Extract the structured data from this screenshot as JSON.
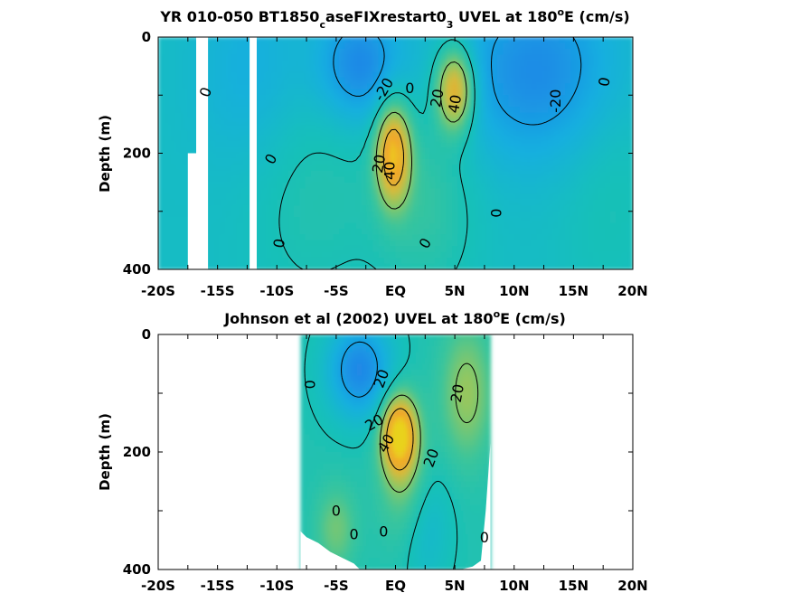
{
  "chart_data": [
    {
      "type": "heatmap",
      "id": "model",
      "title": {
        "pre": "YR 010-050 BT1850",
        "sub1": "c",
        "mid": "aseFIXrestart0",
        "sub2": "3",
        "post1": " UVEL at 180",
        "sup": "o",
        "post2": "E (cm/s)"
      },
      "ylabel": "Depth (m)",
      "xlim": [
        -20,
        20
      ],
      "ylim": [
        0,
        400
      ],
      "y_reversed": true,
      "x_ticks": [
        -20,
        -17.5,
        -15,
        -12.5,
        -10,
        -7.5,
        -5,
        -2.5,
        0,
        2.5,
        5,
        7.5,
        10,
        12.5,
        15,
        17.5,
        20
      ],
      "x_tick_labels": [
        {
          "value": -20,
          "label": "-20S"
        },
        {
          "value": -15,
          "label": "-15S"
        },
        {
          "value": -10,
          "label": "-10S"
        },
        {
          "value": -5,
          "label": "-5S"
        },
        {
          "value": 0,
          "label": "EQ"
        },
        {
          "value": 5,
          "label": "5N"
        },
        {
          "value": 10,
          "label": "10N"
        },
        {
          "value": 15,
          "label": "15N"
        },
        {
          "value": 20,
          "label": "20N"
        }
      ],
      "y_ticks": [
        0,
        100,
        200,
        300,
        400
      ],
      "y_tick_labels": [
        {
          "value": 0,
          "label": "0"
        },
        {
          "value": 200,
          "label": "200"
        },
        {
          "value": 400,
          "label": "400"
        }
      ],
      "missing_bands": [
        {
          "x": [
            -17.5,
            -16.8
          ],
          "y": [
            200,
            400
          ]
        },
        {
          "x": [
            -16.8,
            -15.8
          ],
          "y": [
            0,
            400
          ]
        },
        {
          "x": [
            -12.3,
            -11.7
          ],
          "y": [
            0,
            400
          ]
        }
      ],
      "background_value": -5,
      "features": [
        {
          "lat": -0.2,
          "depth": 200,
          "amp": 55,
          "sx": 1.0,
          "sy": 60
        },
        {
          "lat": 5.0,
          "depth": 90,
          "amp": 50,
          "sx": 1.1,
          "sy": 50
        },
        {
          "lat": -3.0,
          "depth": 50,
          "amp": -24,
          "sx": 2.5,
          "sy": 70
        },
        {
          "lat": 12.0,
          "depth": 60,
          "amp": -22,
          "sx": 5.0,
          "sy": 110
        },
        {
          "lat": -12.0,
          "depth": 60,
          "amp": -10,
          "sx": 3.5,
          "sy": 120
        },
        {
          "lat": 2.5,
          "depth": 280,
          "amp": 12,
          "sx": 3.0,
          "sy": 120
        },
        {
          "lat": -7.0,
          "depth": 260,
          "amp": 8,
          "sx": 4.0,
          "sy": 150
        },
        {
          "lat": 18.0,
          "depth": 250,
          "amp": 6,
          "sx": 3.0,
          "sy": 150
        }
      ],
      "contour_labels": [
        {
          "text": "-20",
          "lat": -1.0,
          "depth": 90,
          "angle": -60
        },
        {
          "text": "0",
          "lat": 1.2,
          "depth": 88,
          "angle": 0
        },
        {
          "text": "20",
          "lat": 3.5,
          "depth": 105,
          "angle": -80
        },
        {
          "text": "40",
          "lat": 5.0,
          "depth": 115,
          "angle": -80
        },
        {
          "text": "20",
          "lat": -1.4,
          "depth": 218,
          "angle": -80
        },
        {
          "text": "40",
          "lat": -0.5,
          "depth": 230,
          "angle": -90
        },
        {
          "text": "0",
          "lat": -16.0,
          "depth": 95,
          "angle": -70
        },
        {
          "text": "0",
          "lat": -10.5,
          "depth": 210,
          "angle": -60
        },
        {
          "text": "0",
          "lat": -9.8,
          "depth": 355,
          "angle": -80
        },
        {
          "text": "0",
          "lat": 2.5,
          "depth": 355,
          "angle": -60
        },
        {
          "text": "0",
          "lat": 8.5,
          "depth": 303,
          "angle": -90
        },
        {
          "text": "-20",
          "lat": 13.5,
          "depth": 110,
          "angle": -90
        },
        {
          "text": "0",
          "lat": 17.6,
          "depth": 77,
          "angle": -80
        }
      ]
    },
    {
      "type": "heatmap",
      "id": "observation",
      "title": {
        "pre": "Johnson et al (2002) UVEL at 180",
        "sup": "o",
        "post2": "E (cm/s)"
      },
      "ylabel": "Depth (m)",
      "xlim": [
        -20,
        20
      ],
      "ylim": [
        0,
        400
      ],
      "y_reversed": true,
      "x_ticks": [
        -20,
        -17.5,
        -15,
        -12.5,
        -10,
        -7.5,
        -5,
        -2.5,
        0,
        2.5,
        5,
        7.5,
        10,
        12.5,
        15,
        17.5,
        20
      ],
      "x_tick_labels": [
        {
          "value": -20,
          "label": "-20S"
        },
        {
          "value": -15,
          "label": "-15S"
        },
        {
          "value": -10,
          "label": "-10S"
        },
        {
          "value": -5,
          "label": "-5S"
        },
        {
          "value": 0,
          "label": "EQ"
        },
        {
          "value": 5,
          "label": "5N"
        },
        {
          "value": 10,
          "label": "10N"
        },
        {
          "value": 15,
          "label": "15N"
        },
        {
          "value": 20,
          "label": "20N"
        }
      ],
      "y_ticks": [
        0,
        100,
        200,
        300,
        400
      ],
      "y_tick_labels": [
        {
          "value": 0,
          "label": "0"
        },
        {
          "value": 200,
          "label": "200"
        },
        {
          "value": 400,
          "label": "400"
        }
      ],
      "data_lat_range": [
        -8,
        8
      ],
      "bottom_profile": [
        {
          "lat": -8.0,
          "depth": 335
        },
        {
          "lat": -7.5,
          "depth": 345
        },
        {
          "lat": -6.5,
          "depth": 355
        },
        {
          "lat": -5.5,
          "depth": 370
        },
        {
          "lat": -4.5,
          "depth": 380
        },
        {
          "lat": -3.5,
          "depth": 390
        },
        {
          "lat": -3.0,
          "depth": 400
        },
        {
          "lat": 5.5,
          "depth": 400
        },
        {
          "lat": 6.5,
          "depth": 395
        },
        {
          "lat": 7.2,
          "depth": 385
        },
        {
          "lat": 7.6,
          "depth": 300
        },
        {
          "lat": 8.0,
          "depth": 185
        }
      ],
      "background_value": 2,
      "features": [
        {
          "lat": 0.3,
          "depth": 170,
          "amp": 58,
          "sx": 1.0,
          "sy": 45
        },
        {
          "lat": 0.8,
          "depth": 240,
          "amp": 18,
          "sx": 1.5,
          "sy": 80
        },
        {
          "lat": -3.0,
          "depth": 60,
          "amp": -30,
          "sx": 2.0,
          "sy": 60
        },
        {
          "lat": 6.0,
          "depth": 100,
          "amp": 22,
          "sx": 1.5,
          "sy": 80
        },
        {
          "lat": 2.5,
          "depth": 320,
          "amp": -12,
          "sx": 1.5,
          "sy": 80
        },
        {
          "lat": -5.0,
          "depth": 330,
          "amp": 16,
          "sx": 1.2,
          "sy": 50
        }
      ],
      "contour_labels": [
        {
          "text": "0",
          "lat": -7.2,
          "depth": 85,
          "angle": -90
        },
        {
          "text": "20",
          "lat": -1.2,
          "depth": 75,
          "angle": -70
        },
        {
          "text": "20",
          "lat": -1.8,
          "depth": 150,
          "angle": -30
        },
        {
          "text": "40",
          "lat": -0.8,
          "depth": 185,
          "angle": -60
        },
        {
          "text": "20",
          "lat": 5.2,
          "depth": 100,
          "angle": -80
        },
        {
          "text": "20",
          "lat": 3.0,
          "depth": 210,
          "angle": -70
        },
        {
          "text": "0",
          "lat": -5.0,
          "depth": 300,
          "angle": 0
        },
        {
          "text": "0",
          "lat": -3.5,
          "depth": 340,
          "angle": 0
        },
        {
          "text": "0",
          "lat": -1.0,
          "depth": 335,
          "angle": 0
        },
        {
          "text": "0",
          "lat": 7.5,
          "depth": 345,
          "angle": 0
        }
      ]
    }
  ],
  "colormap": {
    "name": "parula-like",
    "vmin": -40,
    "vmax": 60,
    "stops": [
      "#3b4ef0",
      "#1f8ae6",
      "#12aee0",
      "#12bfbd",
      "#3cc59a",
      "#8fc763",
      "#d4bb3c",
      "#f2a42a",
      "#e9d21f"
    ]
  },
  "contour_levels": [
    -20,
    0,
    20,
    40
  ]
}
